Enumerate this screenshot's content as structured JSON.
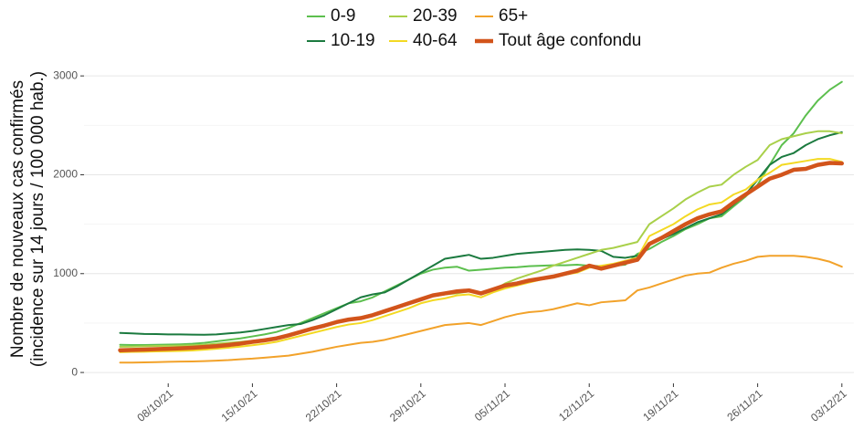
{
  "chart_data": {
    "type": "line",
    "ylabel": [
      "Nombre de nouveaux cas confirmés",
      "(incidence sur 14 jours / 100 000 hab.)"
    ],
    "x": [
      "2021-10-04",
      "2021-10-05",
      "2021-10-06",
      "2021-10-07",
      "2021-10-08",
      "2021-10-09",
      "2021-10-10",
      "2021-10-11",
      "2021-10-12",
      "2021-10-13",
      "2021-10-14",
      "2021-10-15",
      "2021-10-16",
      "2021-10-17",
      "2021-10-18",
      "2021-10-19",
      "2021-10-20",
      "2021-10-21",
      "2021-10-22",
      "2021-10-23",
      "2021-10-24",
      "2021-10-25",
      "2021-10-26",
      "2021-10-27",
      "2021-10-28",
      "2021-10-29",
      "2021-10-30",
      "2021-10-31",
      "2021-11-01",
      "2021-11-02",
      "2021-11-03",
      "2021-11-04",
      "2021-11-05",
      "2021-11-06",
      "2021-11-07",
      "2021-11-08",
      "2021-11-09",
      "2021-11-10",
      "2021-11-11",
      "2021-11-12",
      "2021-11-13",
      "2021-11-14",
      "2021-11-15",
      "2021-11-16",
      "2021-11-17",
      "2021-11-18",
      "2021-11-19",
      "2021-11-20",
      "2021-11-21",
      "2021-11-22",
      "2021-11-23",
      "2021-11-24",
      "2021-11-25",
      "2021-11-26",
      "2021-11-27",
      "2021-11-28",
      "2021-11-29",
      "2021-11-30",
      "2021-12-01",
      "2021-12-02",
      "2021-12-03"
    ],
    "series": [
      {
        "name": "0-9",
        "color": "#5cbf4e",
        "linewidth": 2,
        "values": [
          280,
          278,
          278,
          280,
          282,
          285,
          290,
          300,
          315,
          330,
          345,
          365,
          385,
          410,
          450,
          500,
          550,
          600,
          650,
          700,
          720,
          760,
          820,
          880,
          940,
          1000,
          1040,
          1060,
          1070,
          1030,
          1040,
          1050,
          1060,
          1065,
          1075,
          1080,
          1085,
          1085,
          1090,
          1080,
          1075,
          1080,
          1090,
          1200,
          1250,
          1320,
          1380,
          1450,
          1500,
          1560,
          1580,
          1680,
          1780,
          1900,
          2100,
          2300,
          2420,
          2600,
          2750,
          2860,
          2940
        ]
      },
      {
        "name": "10-19",
        "color": "#1b7a3f",
        "linewidth": 2,
        "values": [
          400,
          395,
          390,
          388,
          385,
          385,
          383,
          382,
          385,
          395,
          405,
          420,
          440,
          460,
          480,
          490,
          530,
          580,
          640,
          700,
          760,
          790,
          810,
          870,
          940,
          1010,
          1080,
          1150,
          1170,
          1190,
          1150,
          1160,
          1180,
          1200,
          1210,
          1220,
          1230,
          1240,
          1245,
          1240,
          1230,
          1170,
          1160,
          1180,
          1300,
          1350,
          1400,
          1460,
          1520,
          1560,
          1600,
          1700,
          1800,
          1950,
          2100,
          2180,
          2220,
          2300,
          2360,
          2400,
          2430
        ]
      },
      {
        "name": "20-39",
        "color": "#a9d04a",
        "linewidth": 2,
        "values": [
          260,
          262,
          265,
          268,
          270,
          272,
          275,
          280,
          290,
          300,
          310,
          320,
          335,
          350,
          380,
          410,
          450,
          480,
          510,
          540,
          560,
          590,
          620,
          660,
          700,
          740,
          770,
          790,
          800,
          820,
          790,
          830,
          900,
          950,
          990,
          1030,
          1080,
          1120,
          1160,
          1200,
          1240,
          1260,
          1290,
          1320,
          1500,
          1580,
          1660,
          1750,
          1820,
          1880,
          1900,
          2000,
          2080,
          2150,
          2300,
          2360,
          2390,
          2420,
          2440,
          2440,
          2420
        ]
      },
      {
        "name": "40-64",
        "color": "#f3d923",
        "linewidth": 2,
        "values": [
          205,
          208,
          210,
          213,
          215,
          218,
          222,
          230,
          240,
          250,
          262,
          275,
          290,
          310,
          340,
          370,
          400,
          430,
          460,
          485,
          500,
          530,
          570,
          610,
          650,
          700,
          730,
          750,
          780,
          790,
          760,
          810,
          850,
          880,
          910,
          940,
          960,
          990,
          1010,
          1060,
          1080,
          1100,
          1130,
          1160,
          1380,
          1440,
          1500,
          1580,
          1650,
          1700,
          1720,
          1800,
          1850,
          1950,
          2020,
          2100,
          2120,
          2140,
          2160,
          2160,
          2130
        ]
      },
      {
        "name": "65+",
        "color": "#f2a22a",
        "linewidth": 2,
        "values": [
          100,
          100,
          102,
          105,
          108,
          110,
          112,
          115,
          120,
          125,
          133,
          140,
          150,
          160,
          170,
          190,
          210,
          235,
          260,
          280,
          300,
          310,
          330,
          360,
          390,
          420,
          450,
          480,
          490,
          500,
          480,
          520,
          560,
          590,
          610,
          620,
          640,
          670,
          700,
          680,
          710,
          720,
          730,
          830,
          860,
          900,
          940,
          980,
          1000,
          1010,
          1060,
          1100,
          1130,
          1170,
          1180,
          1180,
          1180,
          1170,
          1150,
          1120,
          1070
        ]
      },
      {
        "name": "Tout âge confondu",
        "color": "#d2541b",
        "linewidth": 4.5,
        "values": [
          225,
          228,
          232,
          236,
          240,
          244,
          250,
          258,
          266,
          278,
          292,
          310,
          325,
          345,
          375,
          410,
          445,
          475,
          510,
          535,
          550,
          580,
          620,
          660,
          700,
          740,
          780,
          800,
          820,
          830,
          800,
          840,
          880,
          900,
          930,
          950,
          970,
          1000,
          1030,
          1080,
          1050,
          1080,
          1110,
          1140,
          1300,
          1360,
          1430,
          1500,
          1560,
          1600,
          1630,
          1720,
          1800,
          1880,
          1960,
          2000,
          2050,
          2060,
          2100,
          2120,
          2115
        ]
      }
    ],
    "xlim": [
      "2021-10-01",
      "2021-12-04"
    ],
    "xticks": [
      {
        "value": "2021-10-08",
        "label": "08/10/21"
      },
      {
        "value": "2021-10-15",
        "label": "15/10/21"
      },
      {
        "value": "2021-10-22",
        "label": "22/10/21"
      },
      {
        "value": "2021-10-29",
        "label": "29/10/21"
      },
      {
        "value": "2021-11-05",
        "label": "05/11/21"
      },
      {
        "value": "2021-11-12",
        "label": "12/11/21"
      },
      {
        "value": "2021-11-19",
        "label": "19/11/21"
      },
      {
        "value": "2021-11-26",
        "label": "26/11/21"
      },
      {
        "value": "2021-12-03",
        "label": "03/12/21"
      }
    ],
    "ylim": [
      -110,
      3200
    ],
    "yticks": [
      0,
      1000,
      2000,
      3000
    ],
    "yminorticks": [
      500,
      1500,
      2500
    ],
    "grid": true,
    "legend": "top"
  }
}
